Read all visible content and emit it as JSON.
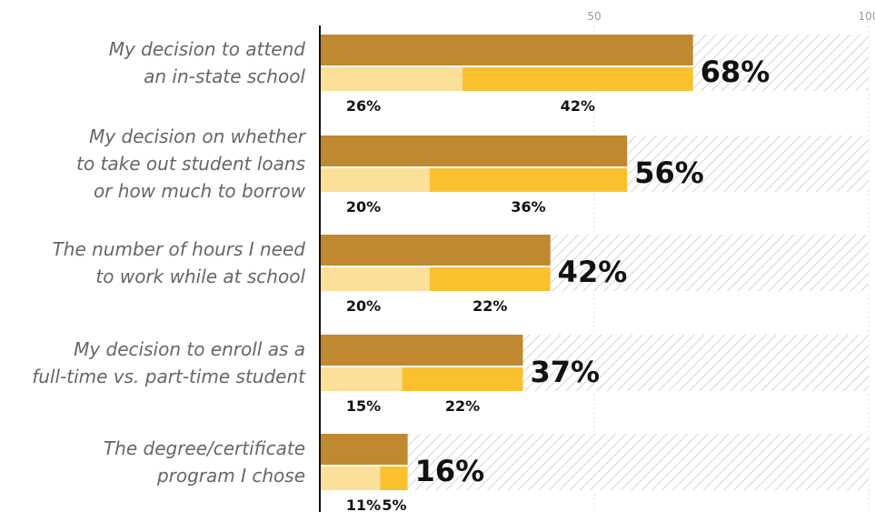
{
  "chart_data": {
    "type": "bar",
    "xlim": [
      0,
      100
    ],
    "ticks": [
      "50",
      "100"
    ],
    "colors": {
      "total": "#c08830",
      "segment_a": "#fce09a",
      "segment_b": "#fbc02d",
      "remainder_hatch": "#c8c8c8",
      "axis": "#111111",
      "grid": "#dddddd"
    },
    "categories": [
      [
        "My decision to attend",
        "an in-state school"
      ],
      [
        "My decision on whether",
        "to take out student loans",
        "or how much to borrow"
      ],
      [
        "The number of hours I need",
        "to work while at school"
      ],
      [
        "My decision to enroll as a",
        "full-time vs. part-time student"
      ],
      [
        "The degree/certificate",
        "program I chose"
      ]
    ],
    "totals": [
      68,
      56,
      42,
      37,
      16
    ],
    "total_labels": [
      "68%",
      "56%",
      "42%",
      "37%",
      "16%"
    ],
    "segments": [
      {
        "values": [
          26,
          20,
          20,
          15,
          11
        ],
        "labels": [
          "26%",
          "20%",
          "20%",
          "15%",
          "11%"
        ]
      },
      {
        "values": [
          42,
          36,
          22,
          22,
          5
        ],
        "labels": [
          "42%",
          "36%",
          "22%",
          "22%",
          "5%"
        ]
      }
    ]
  }
}
